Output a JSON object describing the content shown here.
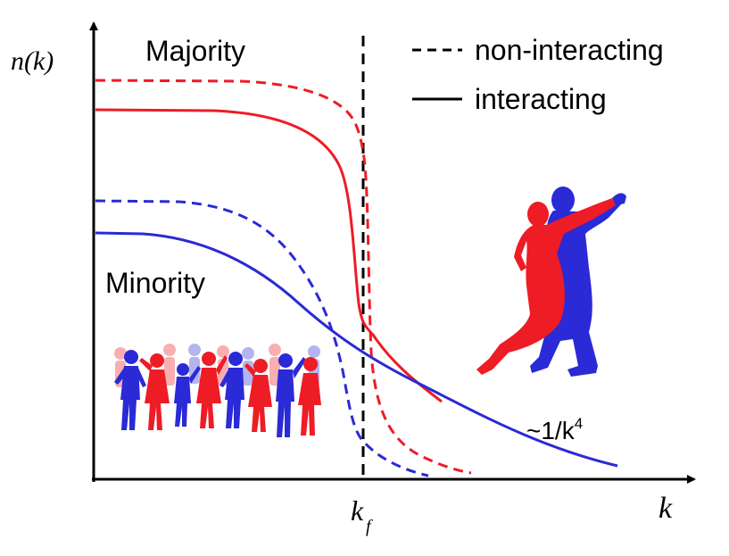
{
  "axes": {
    "y_label": "n(k)",
    "x_label": "k",
    "fermi_label": "k",
    "fermi_subscript": "f"
  },
  "labels": {
    "majority": "Majority",
    "minority": "Minority",
    "tail": "~1/k",
    "tail_exponent": "4"
  },
  "legend": {
    "dashed_label": "non-interacting",
    "solid_label": "interacting"
  },
  "colors": {
    "majority": "#ee1c25",
    "minority": "#2a2ad6",
    "axis": "#000000"
  },
  "icons": [
    "crowd-of-dancers-icon",
    "tango-couple-icon"
  ]
}
